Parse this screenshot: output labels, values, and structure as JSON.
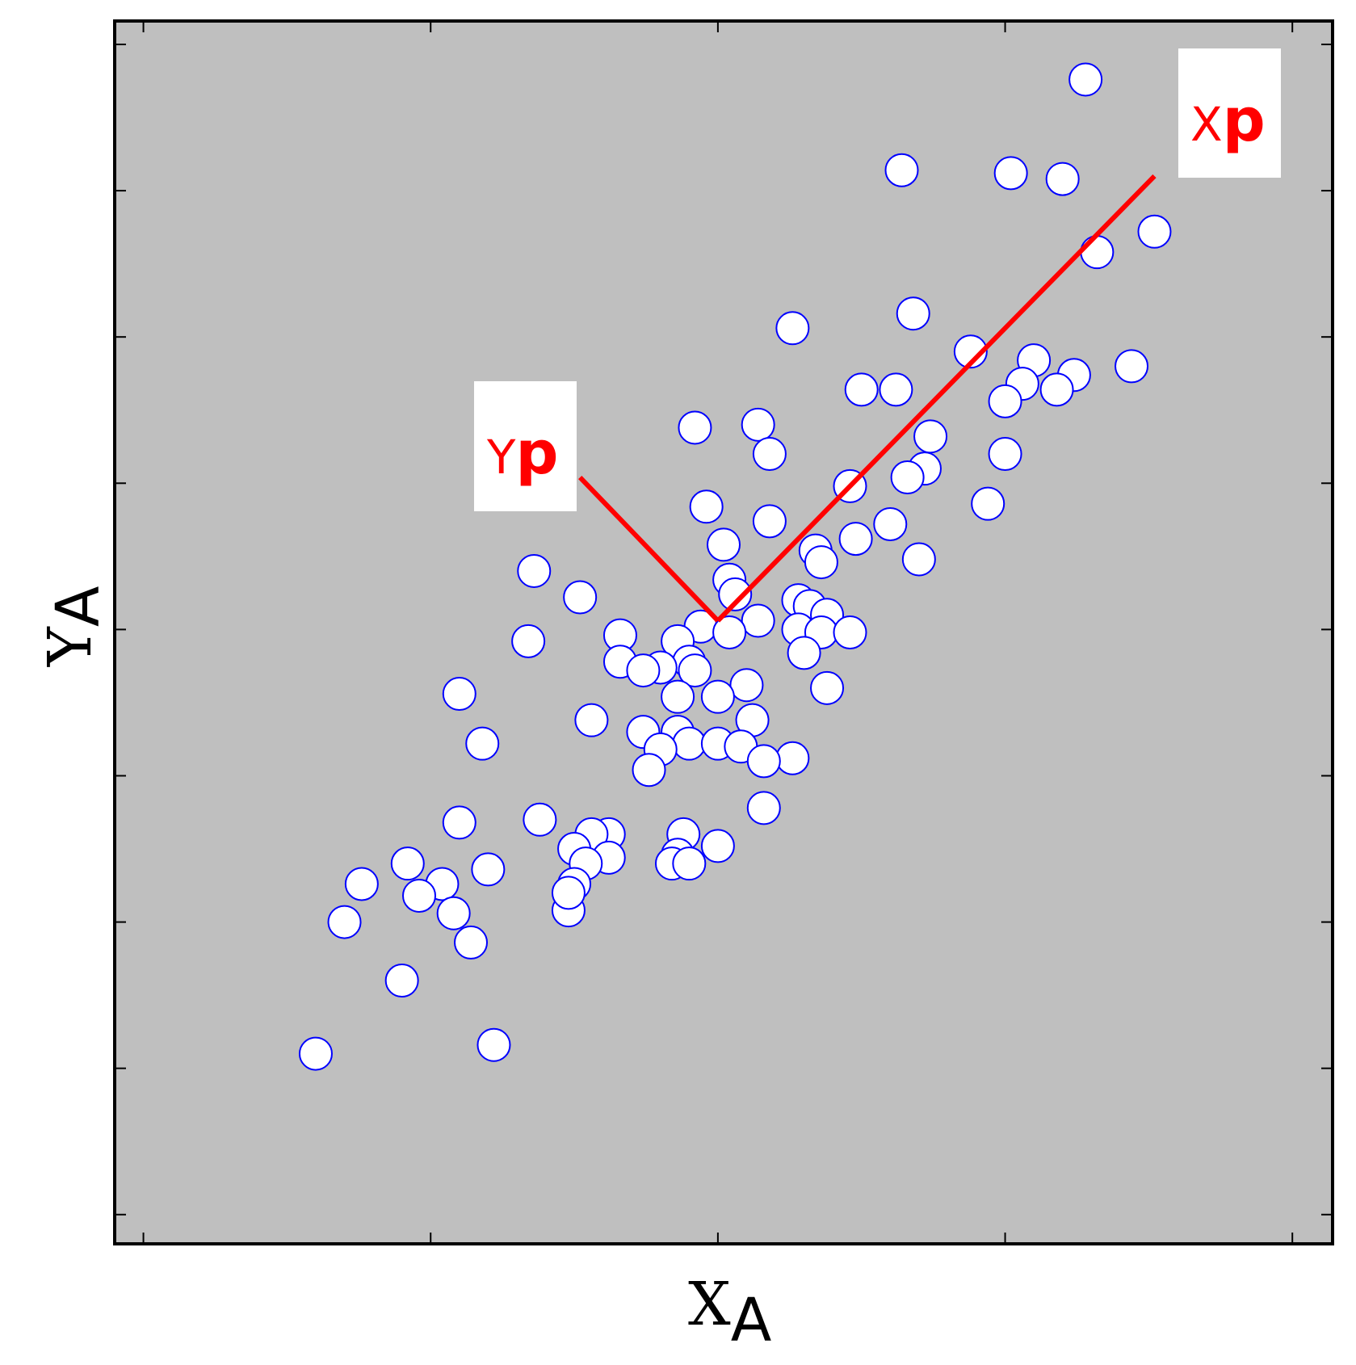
{
  "chart_data": {
    "type": "scatter",
    "xlabel": {
      "main": "X",
      "sub": "A"
    },
    "ylabel": {
      "main": "Y",
      "sub": "A"
    },
    "xlim": [
      -0.05,
      2.07
    ],
    "ylim": [
      -2.1,
      2.08
    ],
    "x_ticks": [
      0,
      0.5,
      1,
      1.5,
      2
    ],
    "y_ticks": [
      -2,
      -1.5,
      -1,
      -0.5,
      0,
      0.5,
      1,
      1.5,
      2
    ],
    "tick_labels_shown": false,
    "grid": false,
    "background_color": "#bfbfbf",
    "marker": {
      "shape": "circle",
      "face_color": "#ffffff",
      "edge_color": "#0000ff"
    },
    "principal_axes": {
      "color": "#ff0000",
      "origin": [
        1.0,
        0.03
      ],
      "xp_end": [
        1.76,
        1.55
      ],
      "yp_end": [
        0.76,
        0.52
      ],
      "labels": [
        {
          "main": "X",
          "sub": "p"
        },
        {
          "main": "Y",
          "sub": "p"
        }
      ]
    },
    "points": [
      [
        1.64,
        1.88
      ],
      [
        1.32,
        1.57
      ],
      [
        1.51,
        1.56
      ],
      [
        1.6,
        1.54
      ],
      [
        1.76,
        1.36
      ],
      [
        1.66,
        1.29
      ],
      [
        1.34,
        1.08
      ],
      [
        1.13,
        1.03
      ],
      [
        1.44,
        0.95
      ],
      [
        1.55,
        0.92
      ],
      [
        1.72,
        0.9
      ],
      [
        1.62,
        0.87
      ],
      [
        1.53,
        0.84
      ],
      [
        1.25,
        0.82
      ],
      [
        1.31,
        0.82
      ],
      [
        1.59,
        0.82
      ],
      [
        1.5,
        0.78
      ],
      [
        0.96,
        0.69
      ],
      [
        1.07,
        0.7
      ],
      [
        1.37,
        0.66
      ],
      [
        1.09,
        0.6
      ],
      [
        1.5,
        0.6
      ],
      [
        1.36,
        0.55
      ],
      [
        1.33,
        0.52
      ],
      [
        1.23,
        0.49
      ],
      [
        1.47,
        0.43
      ],
      [
        0.98,
        0.42
      ],
      [
        1.09,
        0.37
      ],
      [
        1.3,
        0.36
      ],
      [
        1.01,
        0.29
      ],
      [
        1.24,
        0.31
      ],
      [
        1.17,
        0.27
      ],
      [
        1.18,
        0.23
      ],
      [
        1.35,
        0.24
      ],
      [
        0.68,
        0.2
      ],
      [
        1.02,
        0.17
      ],
      [
        0.76,
        0.11
      ],
      [
        1.03,
        0.12
      ],
      [
        1.14,
        0.1
      ],
      [
        1.16,
        0.08
      ],
      [
        1.19,
        0.05
      ],
      [
        1.07,
        0.03
      ],
      [
        1.14,
        0.0
      ],
      [
        1.18,
        -0.01
      ],
      [
        1.23,
        -0.01
      ],
      [
        0.97,
        0.01
      ],
      [
        1.02,
        -0.01
      ],
      [
        0.83,
        -0.02
      ],
      [
        0.67,
        -0.04
      ],
      [
        0.93,
        -0.04
      ],
      [
        1.15,
        -0.08
      ],
      [
        0.83,
        -0.11
      ],
      [
        0.95,
        -0.11
      ],
      [
        0.9,
        -0.13
      ],
      [
        0.96,
        -0.14
      ],
      [
        0.87,
        -0.14
      ],
      [
        1.05,
        -0.19
      ],
      [
        1.19,
        -0.2
      ],
      [
        0.55,
        -0.22
      ],
      [
        1.0,
        -0.23
      ],
      [
        0.93,
        -0.23
      ],
      [
        1.06,
        -0.31
      ],
      [
        0.78,
        -0.31
      ],
      [
        0.87,
        -0.35
      ],
      [
        0.93,
        -0.35
      ],
      [
        0.59,
        -0.39
      ],
      [
        0.95,
        -0.39
      ],
      [
        1.0,
        -0.39
      ],
      [
        1.04,
        -0.4
      ],
      [
        0.9,
        -0.41
      ],
      [
        1.13,
        -0.44
      ],
      [
        1.08,
        -0.45
      ],
      [
        0.88,
        -0.48
      ],
      [
        1.08,
        -0.61
      ],
      [
        0.55,
        -0.66
      ],
      [
        0.69,
        -0.65
      ],
      [
        0.81,
        -0.7
      ],
      [
        0.78,
        -0.7
      ],
      [
        0.94,
        -0.7
      ],
      [
        0.75,
        -0.75
      ],
      [
        0.81,
        -0.78
      ],
      [
        0.93,
        -0.77
      ],
      [
        0.92,
        -0.8
      ],
      [
        1.0,
        -0.74
      ],
      [
        0.46,
        -0.8
      ],
      [
        0.6,
        -0.82
      ],
      [
        0.77,
        -0.8
      ],
      [
        0.95,
        -0.8
      ],
      [
        0.52,
        -0.87
      ],
      [
        0.38,
        -0.87
      ],
      [
        0.48,
        -0.91
      ],
      [
        0.54,
        -0.97
      ],
      [
        0.75,
        -0.87
      ],
      [
        0.35,
        -1.0
      ],
      [
        0.45,
        -1.2
      ],
      [
        0.74,
        -0.96
      ],
      [
        0.74,
        -0.9
      ],
      [
        0.57,
        -1.07
      ],
      [
        0.3,
        -1.45
      ],
      [
        0.61,
        -1.42
      ]
    ]
  }
}
